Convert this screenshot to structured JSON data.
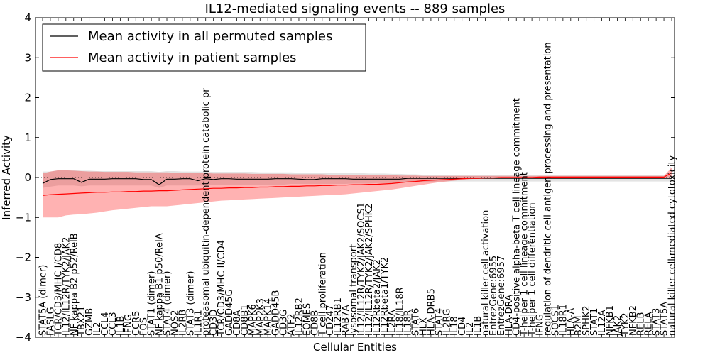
{
  "chart_data": {
    "type": "line",
    "title": "IL12-mediated signaling events -- 889 samples",
    "xlabel": "Cellular Entities",
    "ylabel": "Inferred Activity",
    "ylim": [
      -4,
      4
    ],
    "yticks": [
      -4,
      -3,
      -2,
      -1,
      0,
      1,
      2,
      3,
      4
    ],
    "legend_position": "top-left",
    "categories": [
      "STAT5A (dimer)",
      "FASLG",
      "TCR/CD3/MHC I/CD8",
      "IL12/IL12R/TYK2/JAK2",
      "NF kappa B2 p52/RelB",
      "TBX21",
      "GZMB",
      "IL2",
      "CCL4",
      "CCL3",
      "IL1B",
      "IFNG",
      "CCR5",
      "FOS",
      "STAT1 (dimer)",
      "NF kappa B1 p50/RelA",
      "STAT4 (dimer)",
      "NOS2",
      "IL2RB",
      "STAT3 (dimer)",
      "IL1R1",
      "proteasomal ubiquitin-dependent protein catabolic pr",
      "CD3D",
      "TCR/CD3/MHC II/CD4",
      "GADD45G",
      "CD8A",
      "CD8B1",
      "MAPK6",
      "MAP2K3",
      "MAPK14",
      "GADD45B",
      "CD3G",
      "ATF2",
      "IL12RB2",
      "EOMES",
      "CD8B",
      "T cell proliferation",
      "CD247",
      "IL12RB1",
      "RAB7A",
      "lysosomal transport",
      "IL12/IL12R/TYK2/JAK2/SOCS1",
      "IL12/IL12R/TYK2/JAK2/SPHK2",
      "IL12Rbeta2/JAK2",
      "IL12Rbeta1/TYK2",
      "IL2RA",
      "IL18/IL18R",
      "IL18R",
      "STAT6",
      "HLX",
      "HLA-DRB5",
      "STAT4",
      "IL2RG",
      "IL18",
      "CD4",
      "IL2",
      "IL1B",
      "natural killer cell activation",
      "EntrezGene:6955",
      "EntrezGene:6957",
      "HLA-DRA",
      "CD4-positive alpha-beta T cell lineage commitment",
      "T-helper 1 cell lineage commitment",
      "T-helper 1 cell differentiation",
      "IFNG",
      "regulation of dendritic cell antigen processing and presentation",
      "SOCS1",
      "IL18R1",
      "HLA-A",
      "B2M",
      "SPHK2",
      "STAT1",
      "IL12A",
      "NFKB1",
      "JAK2",
      "TYK2",
      "NFKB2",
      "RELB",
      "RELA",
      "STAT3",
      "STAT5A",
      "natural killer cell mediated cytotoxicity"
    ],
    "series": [
      {
        "name": "Mean activity in all permuted samples",
        "color": "#000000",
        "values": [
          -0.15,
          -0.05,
          -0.03,
          -0.03,
          -0.03,
          -0.12,
          -0.04,
          -0.04,
          -0.04,
          -0.03,
          -0.03,
          -0.03,
          -0.03,
          -0.05,
          -0.05,
          -0.18,
          -0.04,
          -0.04,
          -0.03,
          -0.03,
          -0.08,
          -0.03,
          -0.05,
          -0.03,
          -0.03,
          -0.04,
          -0.04,
          -0.04,
          -0.04,
          -0.04,
          -0.03,
          -0.03,
          -0.03,
          -0.04,
          -0.05,
          -0.05,
          -0.03,
          -0.03,
          -0.03,
          -0.03,
          -0.04,
          -0.04,
          -0.04,
          -0.04,
          -0.04,
          -0.04,
          -0.04,
          -0.02,
          -0.02,
          -0.02,
          -0.02,
          -0.02,
          -0.02,
          -0.02,
          -0.02,
          -0.02,
          -0.02,
          -0.02,
          -0.02,
          -0.02,
          -0.02,
          -0.02,
          -0.02,
          -0.02,
          -0.02,
          -0.02,
          -0.02,
          -0.02,
          -0.02,
          -0.02,
          -0.02,
          -0.02,
          -0.02,
          -0.02,
          -0.02,
          -0.02,
          -0.02,
          -0.02,
          -0.02,
          -0.02,
          -0.02,
          -0.02
        ],
        "lower": [
          -0.26,
          -0.23,
          -0.2,
          -0.2,
          -0.2,
          -0.22,
          -0.2,
          -0.2,
          -0.2,
          -0.2,
          -0.2,
          -0.2,
          -0.2,
          -0.2,
          -0.2,
          -0.26,
          -0.2,
          -0.2,
          -0.2,
          -0.2,
          -0.2,
          -0.2,
          -0.18,
          -0.18,
          -0.18,
          -0.18,
          -0.18,
          -0.18,
          -0.18,
          -0.18,
          -0.18,
          -0.18,
          -0.16,
          -0.16,
          -0.16,
          -0.16,
          -0.16,
          -0.16,
          -0.16,
          -0.16,
          -0.15,
          -0.15,
          -0.15,
          -0.14,
          -0.14,
          -0.14,
          -0.13,
          -0.12,
          -0.12,
          -0.11,
          -0.11,
          -0.1,
          -0.1,
          -0.1,
          -0.1,
          -0.1,
          -0.1,
          -0.1,
          -0.1,
          -0.1,
          -0.1,
          -0.1,
          -0.1,
          -0.1,
          -0.1,
          -0.1,
          -0.1,
          -0.1,
          -0.1,
          -0.1,
          -0.1,
          -0.1,
          -0.1,
          -0.1,
          -0.1,
          -0.1,
          -0.1,
          -0.1,
          -0.1,
          -0.1,
          -0.1,
          -0.1
        ],
        "upper": [
          0.15,
          0.15,
          0.18,
          0.18,
          0.18,
          0.17,
          0.17,
          0.16,
          0.16,
          0.16,
          0.16,
          0.16,
          0.16,
          0.16,
          0.16,
          0.14,
          0.16,
          0.16,
          0.15,
          0.15,
          0.15,
          0.15,
          0.14,
          0.14,
          0.14,
          0.14,
          0.14,
          0.14,
          0.13,
          0.13,
          0.13,
          0.13,
          0.13,
          0.12,
          0.12,
          0.12,
          0.12,
          0.12,
          0.12,
          0.11,
          0.11,
          0.11,
          0.1,
          0.1,
          0.1,
          0.09,
          0.09,
          0.08,
          0.08,
          0.07,
          0.07,
          0.07,
          0.07,
          0.07,
          0.07,
          0.07,
          0.07,
          0.07,
          0.07,
          0.07,
          0.07,
          0.07,
          0.07,
          0.07,
          0.07,
          0.07,
          0.07,
          0.07,
          0.07,
          0.07,
          0.07,
          0.07,
          0.07,
          0.07,
          0.07,
          0.07,
          0.07,
          0.07,
          0.07,
          0.07,
          0.07,
          0.07
        ]
      },
      {
        "name": "Mean activity in patient samples",
        "color": "#ff0000",
        "values": [
          -0.45,
          -0.43,
          -0.42,
          -0.41,
          -0.4,
          -0.39,
          -0.38,
          -0.37,
          -0.37,
          -0.36,
          -0.36,
          -0.35,
          -0.35,
          -0.34,
          -0.34,
          -0.33,
          -0.33,
          -0.32,
          -0.31,
          -0.3,
          -0.29,
          -0.28,
          -0.27,
          -0.27,
          -0.26,
          -0.26,
          -0.25,
          -0.25,
          -0.24,
          -0.24,
          -0.23,
          -0.23,
          -0.22,
          -0.22,
          -0.21,
          -0.21,
          -0.2,
          -0.2,
          -0.19,
          -0.19,
          -0.18,
          -0.18,
          -0.17,
          -0.17,
          -0.16,
          -0.15,
          -0.13,
          -0.11,
          -0.1,
          -0.08,
          -0.07,
          -0.06,
          -0.05,
          -0.04,
          -0.03,
          -0.02,
          -0.02,
          -0.01,
          -0.01,
          0.0,
          0.0,
          0.0,
          0.0,
          0.0,
          0.01,
          0.01,
          0.01,
          0.01,
          0.01,
          0.01,
          0.01,
          0.01,
          0.01,
          0.01,
          0.01,
          0.01,
          0.01,
          0.01,
          0.01,
          0.01,
          0.01,
          0.12
        ],
        "lower": [
          -1.0,
          -1.0,
          -1.0,
          -0.95,
          -0.93,
          -0.92,
          -0.9,
          -0.88,
          -0.85,
          -0.82,
          -0.8,
          -0.78,
          -0.76,
          -0.74,
          -0.72,
          -0.72,
          -0.72,
          -0.7,
          -0.68,
          -0.66,
          -0.64,
          -0.62,
          -0.6,
          -0.58,
          -0.57,
          -0.56,
          -0.55,
          -0.54,
          -0.53,
          -0.52,
          -0.51,
          -0.5,
          -0.49,
          -0.48,
          -0.47,
          -0.46,
          -0.45,
          -0.44,
          -0.43,
          -0.42,
          -0.4,
          -0.38,
          -0.36,
          -0.34,
          -0.32,
          -0.3,
          -0.27,
          -0.24,
          -0.21,
          -0.18,
          -0.15,
          -0.12,
          -0.1,
          -0.08,
          -0.06,
          -0.04,
          -0.03,
          -0.02,
          -0.01,
          -0.01,
          -0.01,
          -0.01,
          -0.01,
          -0.01,
          -0.01,
          -0.01,
          -0.01,
          -0.01,
          -0.01,
          -0.01,
          -0.01,
          -0.01,
          -0.01,
          -0.01,
          -0.01,
          -0.01,
          -0.01,
          -0.01,
          -0.01,
          -0.01,
          -0.01,
          0.02
        ],
        "upper": [
          0.1,
          0.15,
          0.18,
          0.18,
          0.17,
          0.16,
          0.15,
          0.15,
          0.14,
          0.14,
          0.14,
          0.14,
          0.13,
          0.13,
          0.13,
          0.13,
          0.13,
          0.12,
          0.12,
          0.12,
          0.11,
          0.11,
          0.1,
          0.1,
          0.1,
          0.1,
          0.1,
          0.09,
          0.09,
          0.09,
          0.09,
          0.09,
          0.08,
          0.08,
          0.08,
          0.08,
          0.08,
          0.07,
          0.07,
          0.07,
          0.07,
          0.07,
          0.06,
          0.06,
          0.06,
          0.06,
          0.05,
          0.05,
          0.05,
          0.04,
          0.04,
          0.04,
          0.04,
          0.04,
          0.04,
          0.04,
          0.04,
          0.04,
          0.04,
          0.04,
          0.04,
          0.04,
          0.04,
          0.04,
          0.04,
          0.04,
          0.04,
          0.04,
          0.04,
          0.04,
          0.04,
          0.04,
          0.04,
          0.04,
          0.04,
          0.04,
          0.04,
          0.04,
          0.04,
          0.04,
          0.04,
          0.25
        ]
      }
    ]
  }
}
